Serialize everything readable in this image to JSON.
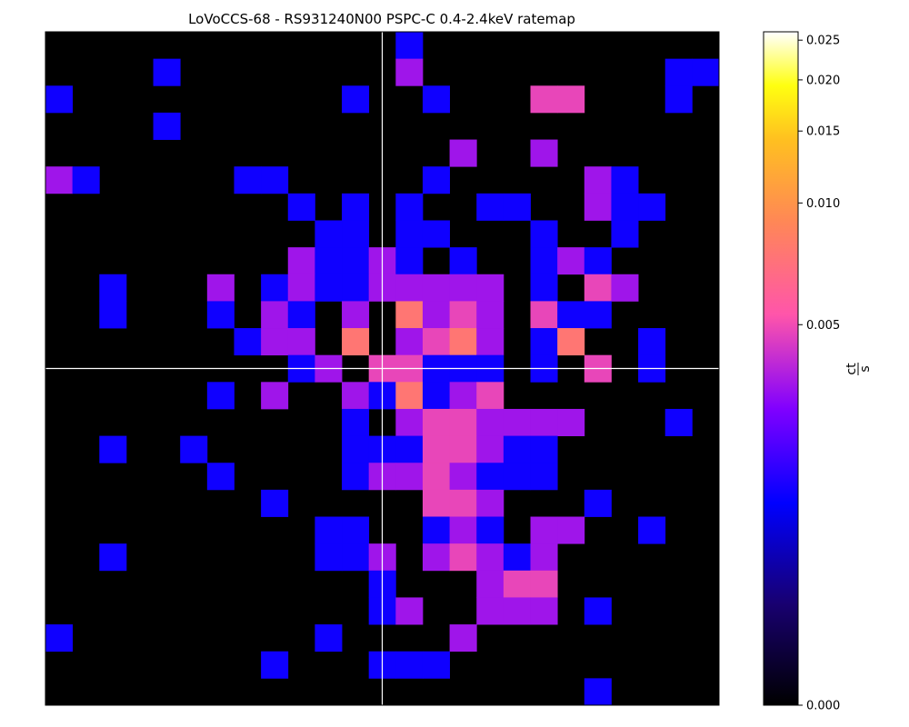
{
  "chart_data": {
    "type": "heatmap",
    "title": "LoVoCCS-68 - RS931240N00 PSPC-C 0.4-2.4keV ratemap",
    "colormap": "gnuplot2",
    "colorbar": {
      "label_num": "ct",
      "label_den": "s",
      "scale": "asinh-like (compressed at high values)",
      "range": [
        0.0,
        0.0262
      ],
      "ticks": [
        {
          "value": 0.0,
          "label": "0.000"
        },
        {
          "value": 0.005,
          "label": "0.005"
        },
        {
          "value": 0.01,
          "label": "0.010"
        },
        {
          "value": 0.015,
          "label": "0.015"
        },
        {
          "value": 0.02,
          "label": "0.020"
        },
        {
          "value": 0.025,
          "label": "0.025"
        }
      ]
    },
    "crosshair": {
      "col": 12.5,
      "row": 12.5
    },
    "grid_size": [
      25,
      25
    ],
    "value_key": {
      "0": 0.0,
      "1": 0.0018,
      "2": 0.0035,
      "3": 0.0048,
      "4": 0.0075
    },
    "rows": [
      "0000000000000100000000000",
      "0000100000000200000000011",
      "1000000000010010003300010",
      "0000100000000000000000000",
      "0000000000000002002000000",
      "2100000110000010000021000",
      "0000000001010100110021100",
      "0000000000110110001001000",
      "0000000002112101001210000",
      "0010002012112222201032000",
      "0010001021020423203110000",
      "0000000122040234201400100",
      "0000000001203311101030100",
      "0000001020021412300000000",
      "0000000000010233222200010",
      "0010010000011133211000000",
      "0000001000012232111000000",
      "0000000010000033200010000",
      "0000000000110012102200100",
      "0010000000112023212000000",
      "0000000000001000233000000",
      "0000000000001200222010000",
      "1000000000100002000000000",
      "0000000010001110000000000",
      "0000000000000000000010000"
    ]
  }
}
